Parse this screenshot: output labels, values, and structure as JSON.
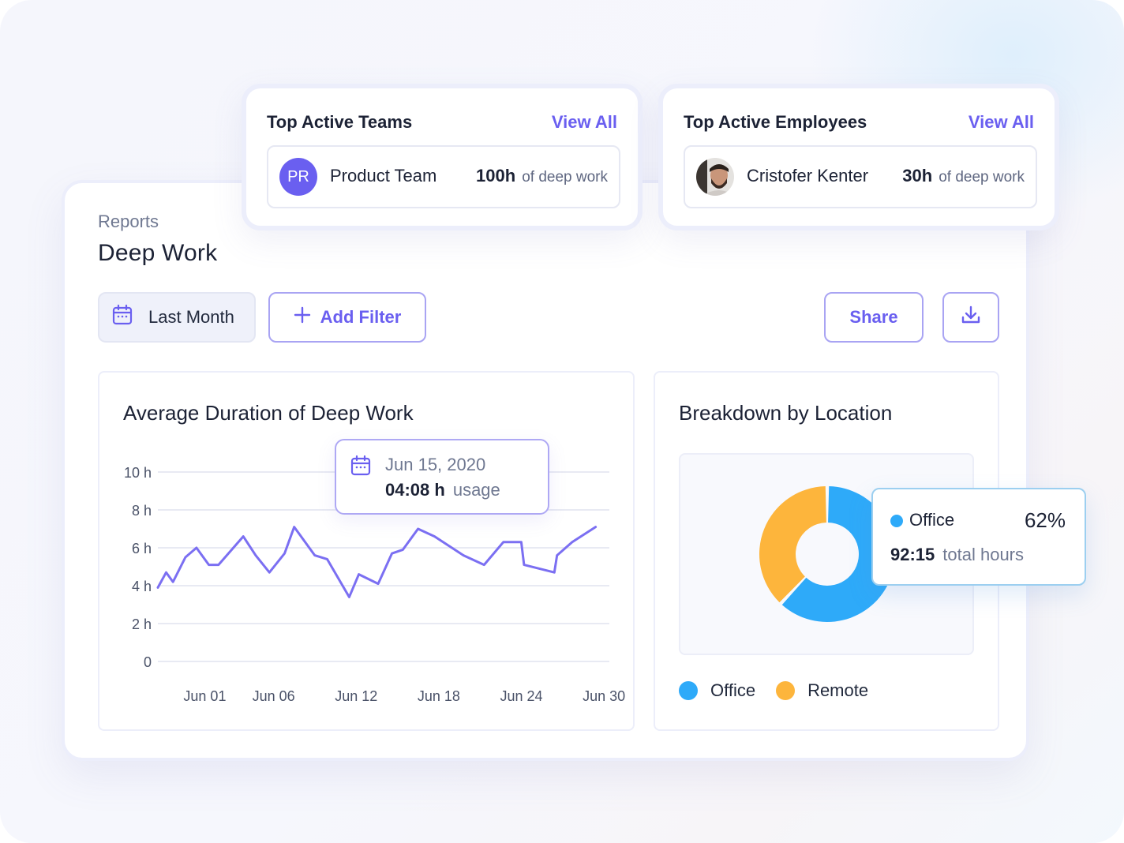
{
  "header": {
    "eyebrow": "Reports",
    "title": "Deep Work"
  },
  "toolbar": {
    "date_range": "Last Month",
    "add_filter": "Add Filter",
    "share": "Share",
    "icons": {
      "calendar": "calendar-icon",
      "plus": "plus-icon",
      "download": "download-icon"
    }
  },
  "top_teams": {
    "title": "Top Active Teams",
    "link": "View All",
    "item": {
      "initials": "PR",
      "name": "Product Team",
      "value": "100h",
      "unit": "of deep work"
    }
  },
  "top_employees": {
    "title": "Top Active Employees",
    "link": "View All",
    "item": {
      "name": "Cristofer Kenter",
      "value": "30h",
      "unit": "of deep work"
    }
  },
  "line_panel": {
    "title": "Average Duration of Deep Work",
    "tooltip": {
      "date": "Jun 15, 2020",
      "value": "04:08 h",
      "unit": "usage"
    }
  },
  "pie_panel": {
    "title": "Breakdown by Location",
    "tooltip": {
      "label": "Office",
      "percent": "62%",
      "hours": "92:15",
      "hours_unit": "total hours"
    },
    "legend": [
      "Office",
      "Remote"
    ]
  },
  "colors": {
    "accent": "#6a5ff0",
    "line": "#7b6ff2",
    "office": "#2eaaf9",
    "remote": "#fdb53c"
  },
  "chart_data": [
    {
      "type": "line",
      "title": "Average Duration of Deep Work",
      "ylim": [
        0,
        10
      ],
      "yticks": [
        {
          "value": 10,
          "label": "10 h"
        },
        {
          "value": 8,
          "label": "8 h"
        },
        {
          "value": 6,
          "label": "6 h"
        },
        {
          "value": 4,
          "label": "4 h"
        },
        {
          "value": 2,
          "label": "2 h"
        },
        {
          "value": 0,
          "label": "0"
        }
      ],
      "xticks": [
        {
          "value": 1,
          "label": "Jun 01"
        },
        {
          "value": 6,
          "label": "Jun 06"
        },
        {
          "value": 12,
          "label": "Jun 12"
        },
        {
          "value": 18,
          "label": "Jun 18"
        },
        {
          "value": 24,
          "label": "Jun 24"
        },
        {
          "value": 30,
          "label": "Jun 30"
        }
      ],
      "xlim": [
        0,
        32
      ],
      "grid": true,
      "series": [
        {
          "points": [
            [
              -0.8,
              3.9
            ],
            [
              -0.2,
              4.7
            ],
            [
              0.3,
              4.2
            ],
            [
              1.2,
              5.5
            ],
            [
              2.0,
              6.0
            ],
            [
              2.9,
              5.1
            ],
            [
              3.6,
              5.1
            ],
            [
              5.4,
              6.6
            ],
            [
              6.3,
              5.6
            ],
            [
              7.3,
              4.7
            ],
            [
              8.4,
              5.7
            ],
            [
              9.1,
              7.1
            ],
            [
              10.6,
              5.6
            ],
            [
              11.5,
              5.4
            ],
            [
              13.1,
              3.4
            ],
            [
              13.8,
              4.6
            ],
            [
              15.2,
              4.1
            ],
            [
              16.2,
              5.7
            ],
            [
              17.0,
              5.9
            ],
            [
              18.1,
              7.0
            ],
            [
              19.3,
              6.6
            ],
            [
              21.4,
              5.6
            ],
            [
              22.9,
              5.1
            ],
            [
              24.3,
              6.3
            ],
            [
              25.6,
              6.3
            ],
            [
              25.8,
              5.1
            ],
            [
              28.0,
              4.7
            ],
            [
              28.2,
              5.6
            ],
            [
              29.3,
              6.3
            ],
            [
              31.0,
              7.1
            ]
          ]
        }
      ]
    },
    {
      "type": "pie",
      "title": "Breakdown by Location",
      "slices": [
        {
          "label": "Office",
          "value": 62
        },
        {
          "label": "Remote",
          "value": 38
        }
      ]
    }
  ]
}
